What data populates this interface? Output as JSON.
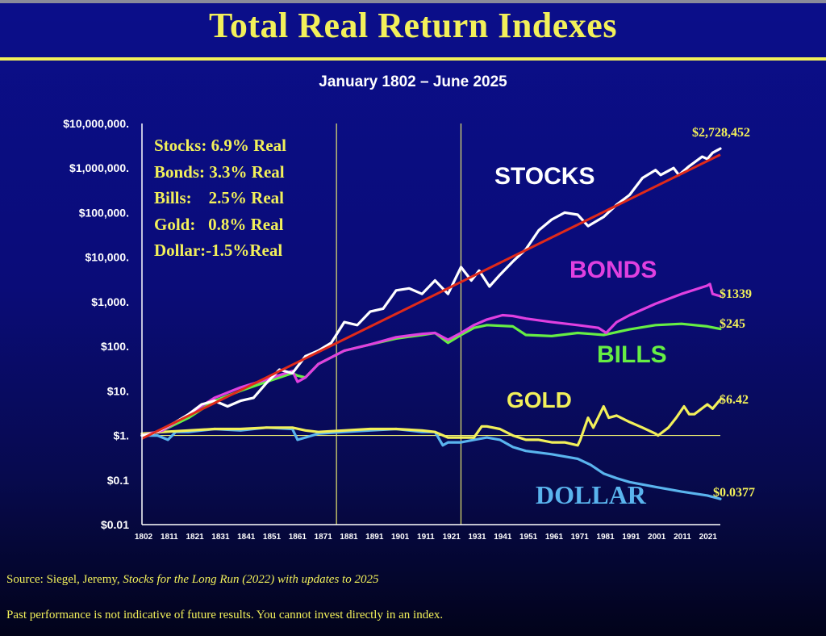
{
  "title": "Total Real Return Indexes",
  "subtitle": "January 1802 – June 2025",
  "stats": [
    "Stocks: 6.9% Real",
    "Bonds: 3.3% Real",
    "Bills:    2.5% Real",
    "Gold:   0.8% Real",
    "Dollar:-1.5%Real"
  ],
  "source_prefix": "Source: Siegel, Jeremy, ",
  "source_book": "Stocks for the Long Run (2022) with updates to 2025",
  "disclaimer": "Past performance is not indicative of future results. You cannot invest directly in an index.",
  "colors": {
    "title": "#f2f05a",
    "stocks": "#ffffff",
    "bonds": "#e040e0",
    "bills": "#66ee44",
    "gold": "#f2f05a",
    "dollar": "#5ab4ee",
    "trend": "#e02a1a",
    "marker_lines": "#e8e870"
  },
  "chart_data": {
    "type": "line",
    "title": "Total Real Return Indexes",
    "y_scale": "log",
    "ylim": [
      0.01,
      10000000
    ],
    "xlim": [
      1802,
      2025
    ],
    "y_tick_values": [
      10000000,
      1000000,
      100000,
      10000,
      1000,
      100,
      10,
      1,
      0.1,
      0.01
    ],
    "y_tick_labels": [
      "$10,000,000.",
      "$1,000,000.",
      "$100,000.",
      "$10,000.",
      "$1,000.",
      "$100.",
      "$10.",
      "$1.",
      "$0.1",
      "$0.01"
    ],
    "x_tick_labels": [
      "1802",
      "1811",
      "1821",
      "1831",
      "1841",
      "1851",
      "1861",
      "1871",
      "1881",
      "1891",
      "1901",
      "1911",
      "1921",
      "1931",
      "1941",
      "1951",
      "1961",
      "1971",
      "1981",
      "1991",
      "2001",
      "2011",
      "2021"
    ],
    "reference_lines_x": [
      1877,
      1925
    ],
    "baseline_y": 1,
    "series": [
      {
        "name": "STOCKS",
        "end_label": "$2,728,452",
        "x": [
          1802,
          1806,
          1810,
          1815,
          1820,
          1825,
          1830,
          1835,
          1840,
          1845,
          1850,
          1855,
          1860,
          1865,
          1870,
          1875,
          1880,
          1885,
          1890,
          1895,
          1900,
          1905,
          1910,
          1915,
          1920,
          1925,
          1929,
          1932,
          1936,
          1940,
          1945,
          1950,
          1955,
          1960,
          1965,
          1970,
          1974,
          1980,
          1985,
          1990,
          1995,
          2000,
          2002,
          2007,
          2009,
          2013,
          2018,
          2020,
          2022,
          2025
        ],
        "y": [
          1,
          1.1,
          1.4,
          2,
          3,
          5,
          6,
          4.5,
          6,
          7,
          15,
          30,
          25,
          60,
          80,
          120,
          350,
          300,
          600,
          700,
          1800,
          2000,
          1500,
          3000,
          1500,
          6000,
          3000,
          5000,
          2200,
          4000,
          8000,
          15000,
          40000,
          70000,
          100000,
          90000,
          50000,
          80000,
          150000,
          250000,
          600000,
          900000,
          700000,
          1000000,
          700000,
          1100000,
          1800000,
          1600000,
          2200000,
          2728452
        ]
      },
      {
        "name": "BONDS",
        "end_label": "$1339",
        "x": [
          1802,
          1810,
          1820,
          1830,
          1840,
          1850,
          1860,
          1862,
          1865,
          1870,
          1880,
          1890,
          1900,
          1910,
          1915,
          1920,
          1925,
          1930,
          1935,
          1941,
          1945,
          1950,
          1960,
          1970,
          1978,
          1981,
          1985,
          1990,
          2000,
          2010,
          2020,
          2021,
          2022,
          2025
        ],
        "y": [
          1,
          1.3,
          3,
          7,
          12,
          18,
          28,
          16,
          20,
          40,
          80,
          110,
          160,
          190,
          200,
          140,
          200,
          300,
          400,
          500,
          480,
          420,
          350,
          300,
          260,
          200,
          350,
          500,
          900,
          1500,
          2300,
          2500,
          1500,
          1339
        ]
      },
      {
        "name": "BILLS",
        "end_label": "$245",
        "x": [
          1802,
          1810,
          1820,
          1830,
          1840,
          1850,
          1860,
          1862,
          1865,
          1870,
          1880,
          1890,
          1900,
          1910,
          1915,
          1920,
          1925,
          1930,
          1935,
          1945,
          1950,
          1960,
          1970,
          1975,
          1980,
          1990,
          2000,
          2010,
          2020,
          2025
        ],
        "y": [
          1,
          1.3,
          2.5,
          6,
          10,
          16,
          25,
          22,
          20,
          40,
          80,
          110,
          150,
          180,
          200,
          120,
          180,
          260,
          300,
          280,
          180,
          170,
          200,
          190,
          180,
          240,
          300,
          320,
          280,
          245
        ]
      },
      {
        "name": "GOLD",
        "end_label": "$6.42",
        "x": [
          1802,
          1810,
          1820,
          1830,
          1840,
          1850,
          1860,
          1865,
          1870,
          1880,
          1890,
          1900,
          1910,
          1915,
          1920,
          1925,
          1930,
          1933,
          1935,
          1940,
          1945,
          1950,
          1955,
          1960,
          1965,
          1970,
          1971,
          1974,
          1976,
          1980,
          1982,
          1985,
          1990,
          1995,
          2000,
          2001,
          2005,
          2008,
          2011,
          2013,
          2015,
          2020,
          2022,
          2025
        ],
        "y": [
          1.1,
          1.2,
          1.3,
          1.4,
          1.4,
          1.5,
          1.5,
          1.3,
          1.2,
          1.3,
          1.4,
          1.4,
          1.3,
          1.2,
          0.9,
          0.9,
          0.9,
          1.6,
          1.6,
          1.4,
          1.0,
          0.8,
          0.8,
          0.7,
          0.7,
          0.6,
          0.8,
          2.5,
          1.5,
          4.5,
          2.5,
          2.8,
          2.0,
          1.5,
          1.1,
          1.0,
          1.5,
          2.5,
          4.5,
          3.0,
          3.0,
          5.0,
          4.0,
          6.42
        ]
      },
      {
        "name": "DOLLAR",
        "end_label": "$0.0377",
        "x": [
          1802,
          1808,
          1812,
          1815,
          1820,
          1830,
          1840,
          1845,
          1850,
          1860,
          1862,
          1865,
          1870,
          1880,
          1890,
          1900,
          1910,
          1915,
          1918,
          1920,
          1925,
          1930,
          1935,
          1940,
          1945,
          1950,
          1960,
          1970,
          1975,
          1980,
          1985,
          1990,
          2000,
          2010,
          2020,
          2025
        ],
        "y": [
          1,
          1.0,
          0.8,
          1.2,
          1.2,
          1.4,
          1.3,
          1.4,
          1.5,
          1.4,
          0.8,
          0.9,
          1.1,
          1.2,
          1.3,
          1.4,
          1.2,
          1.2,
          0.6,
          0.7,
          0.7,
          0.8,
          0.9,
          0.8,
          0.55,
          0.45,
          0.38,
          0.3,
          0.22,
          0.14,
          0.11,
          0.09,
          0.07,
          0.055,
          0.045,
          0.0377
        ]
      }
    ],
    "trend_line": {
      "x": [
        1802,
        2025
      ],
      "y": [
        0.85,
        2000000
      ]
    }
  }
}
